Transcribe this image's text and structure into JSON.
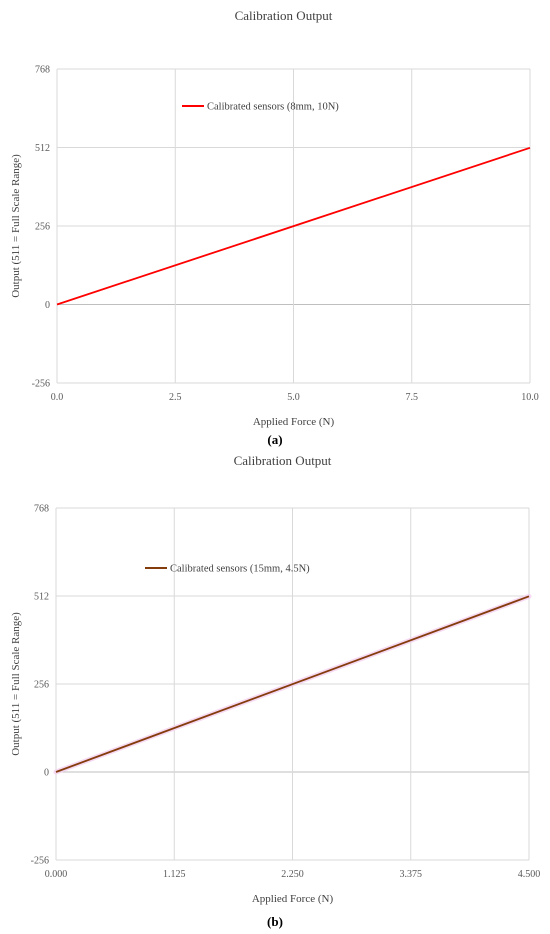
{
  "chart_data": [
    {
      "type": "line",
      "title": "Calibration Output",
      "xlabel": "Applied Force (N)",
      "ylabel": "Output (511 = Full Scale Range)",
      "xlim": [
        0,
        10
      ],
      "ylim": [
        -256,
        768
      ],
      "x_ticks": [
        "0.0",
        "2.5",
        "5.0",
        "7.5",
        "10.0"
      ],
      "y_ticks": [
        "-256",
        "0",
        "256",
        "512",
        "768"
      ],
      "grid": true,
      "legend_position": "top-left",
      "series": [
        {
          "name": "Calibrated sensors (8mm, 10N)",
          "color": "#ff0000",
          "x": [
            0,
            10
          ],
          "y": [
            0,
            511
          ]
        }
      ],
      "caption": "(a)"
    },
    {
      "type": "line",
      "title": "Calibration Output",
      "xlabel": "Applied Force (N)",
      "ylabel": "Output (511 = Full Scale Range)",
      "xlim": [
        0,
        4.5
      ],
      "ylim": [
        -256,
        768
      ],
      "x_ticks": [
        "0.000",
        "1.125",
        "2.250",
        "3.375",
        "4.500"
      ],
      "y_ticks": [
        "-256",
        "0",
        "256",
        "512",
        "768"
      ],
      "grid": true,
      "legend_position": "top-left",
      "series": [
        {
          "name": "Calibrated sensors (15mm, 4.5N)",
          "color": "#843c0c",
          "x": [
            0,
            4.5
          ],
          "y": [
            0,
            511
          ]
        }
      ],
      "caption": "(b)"
    }
  ]
}
